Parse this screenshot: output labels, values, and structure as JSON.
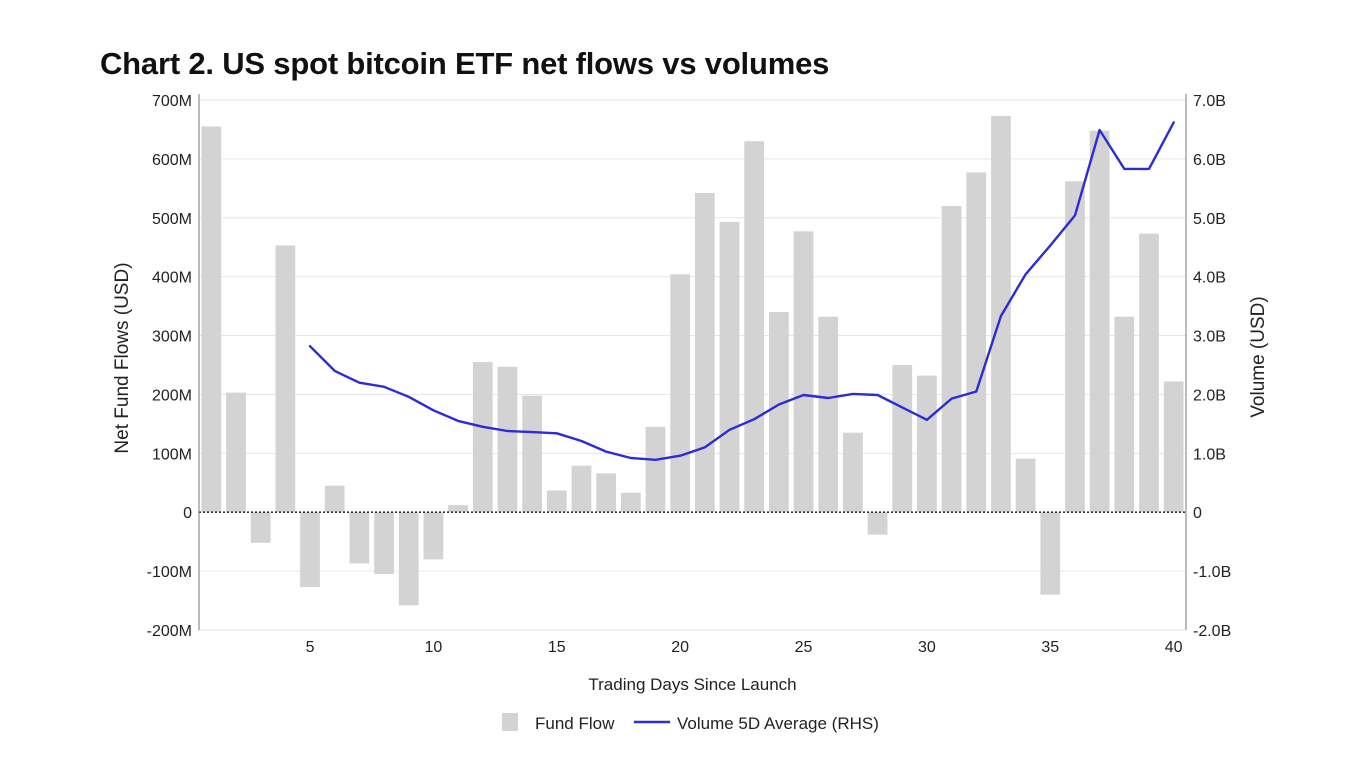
{
  "chart_data": {
    "type": "bar",
    "title": "Chart 2. US spot bitcoin ETF net flows vs volumes",
    "xlabel": "Trading Days Since Launch",
    "ylabel": "Net Fund Flows (USD)",
    "ylabel_right": "Volume (USD)",
    "ylim": [
      -200,
      700
    ],
    "ylim_right": [
      -2.0,
      7.0
    ],
    "x": [
      1,
      2,
      3,
      4,
      5,
      6,
      7,
      8,
      9,
      10,
      11,
      12,
      13,
      14,
      15,
      16,
      17,
      18,
      19,
      20,
      21,
      22,
      23,
      24,
      25,
      26,
      27,
      28,
      29,
      30,
      31,
      32,
      33,
      34,
      35,
      36,
      37,
      38,
      39,
      40
    ],
    "x_ticks": [
      5,
      10,
      15,
      20,
      25,
      30,
      35,
      40
    ],
    "x_tick_labels": [
      "5",
      "10",
      "15",
      "20",
      "25",
      "30",
      "35",
      "40"
    ],
    "y_ticks": [
      -200,
      -100,
      0,
      100,
      200,
      300,
      400,
      500,
      600,
      700
    ],
    "y_tick_labels": [
      "-200M",
      "-100M",
      "0",
      "100M",
      "200M",
      "300M",
      "400M",
      "500M",
      "600M",
      "700M"
    ],
    "y_right_ticks": [
      -2.0,
      -1.0,
      0,
      1.0,
      2.0,
      3.0,
      4.0,
      5.0,
      6.0,
      7.0
    ],
    "y_right_tick_labels": [
      "-2.0B",
      "-1.0B",
      "0",
      "1.0B",
      "2.0B",
      "3.0B",
      "4.0B",
      "5.0B",
      "6.0B",
      "7.0B"
    ],
    "series": [
      {
        "name": "Fund Flow",
        "type": "bar",
        "axis": "left",
        "unit": "M USD",
        "color": "#d3d3d3",
        "values": [
          655,
          203,
          -52,
          453,
          -127,
          45,
          -87,
          -105,
          -158,
          -80,
          12,
          255,
          247,
          198,
          37,
          79,
          66,
          33,
          145,
          404,
          542,
          493,
          630,
          340,
          477,
          332,
          135,
          -38,
          250,
          232,
          520,
          577,
          673,
          91,
          -140,
          562,
          648,
          332,
          473,
          222
        ]
      },
      {
        "name": "Volume 5D Average (RHS)",
        "type": "line",
        "axis": "right",
        "unit": "B USD",
        "color": "#2b2bd9",
        "x": [
          5,
          6,
          7,
          8,
          9,
          10,
          11,
          12,
          13,
          14,
          15,
          16,
          17,
          18,
          19,
          20,
          21,
          22,
          23,
          24,
          25,
          26,
          27,
          28,
          29,
          30,
          31,
          32,
          33,
          34,
          35,
          36,
          37,
          38,
          39,
          40
        ],
        "values": [
          2.82,
          2.4,
          2.2,
          2.13,
          1.96,
          1.73,
          1.55,
          1.45,
          1.38,
          1.36,
          1.34,
          1.21,
          1.03,
          0.92,
          0.89,
          0.96,
          1.1,
          1.4,
          1.58,
          1.83,
          1.99,
          1.94,
          2.01,
          1.99,
          1.78,
          1.57,
          1.93,
          2.05,
          3.33,
          4.04,
          4.53,
          5.04,
          6.49,
          5.83,
          5.83,
          6.62
        ]
      }
    ],
    "legend_position": "bottom-center",
    "grid": true
  }
}
